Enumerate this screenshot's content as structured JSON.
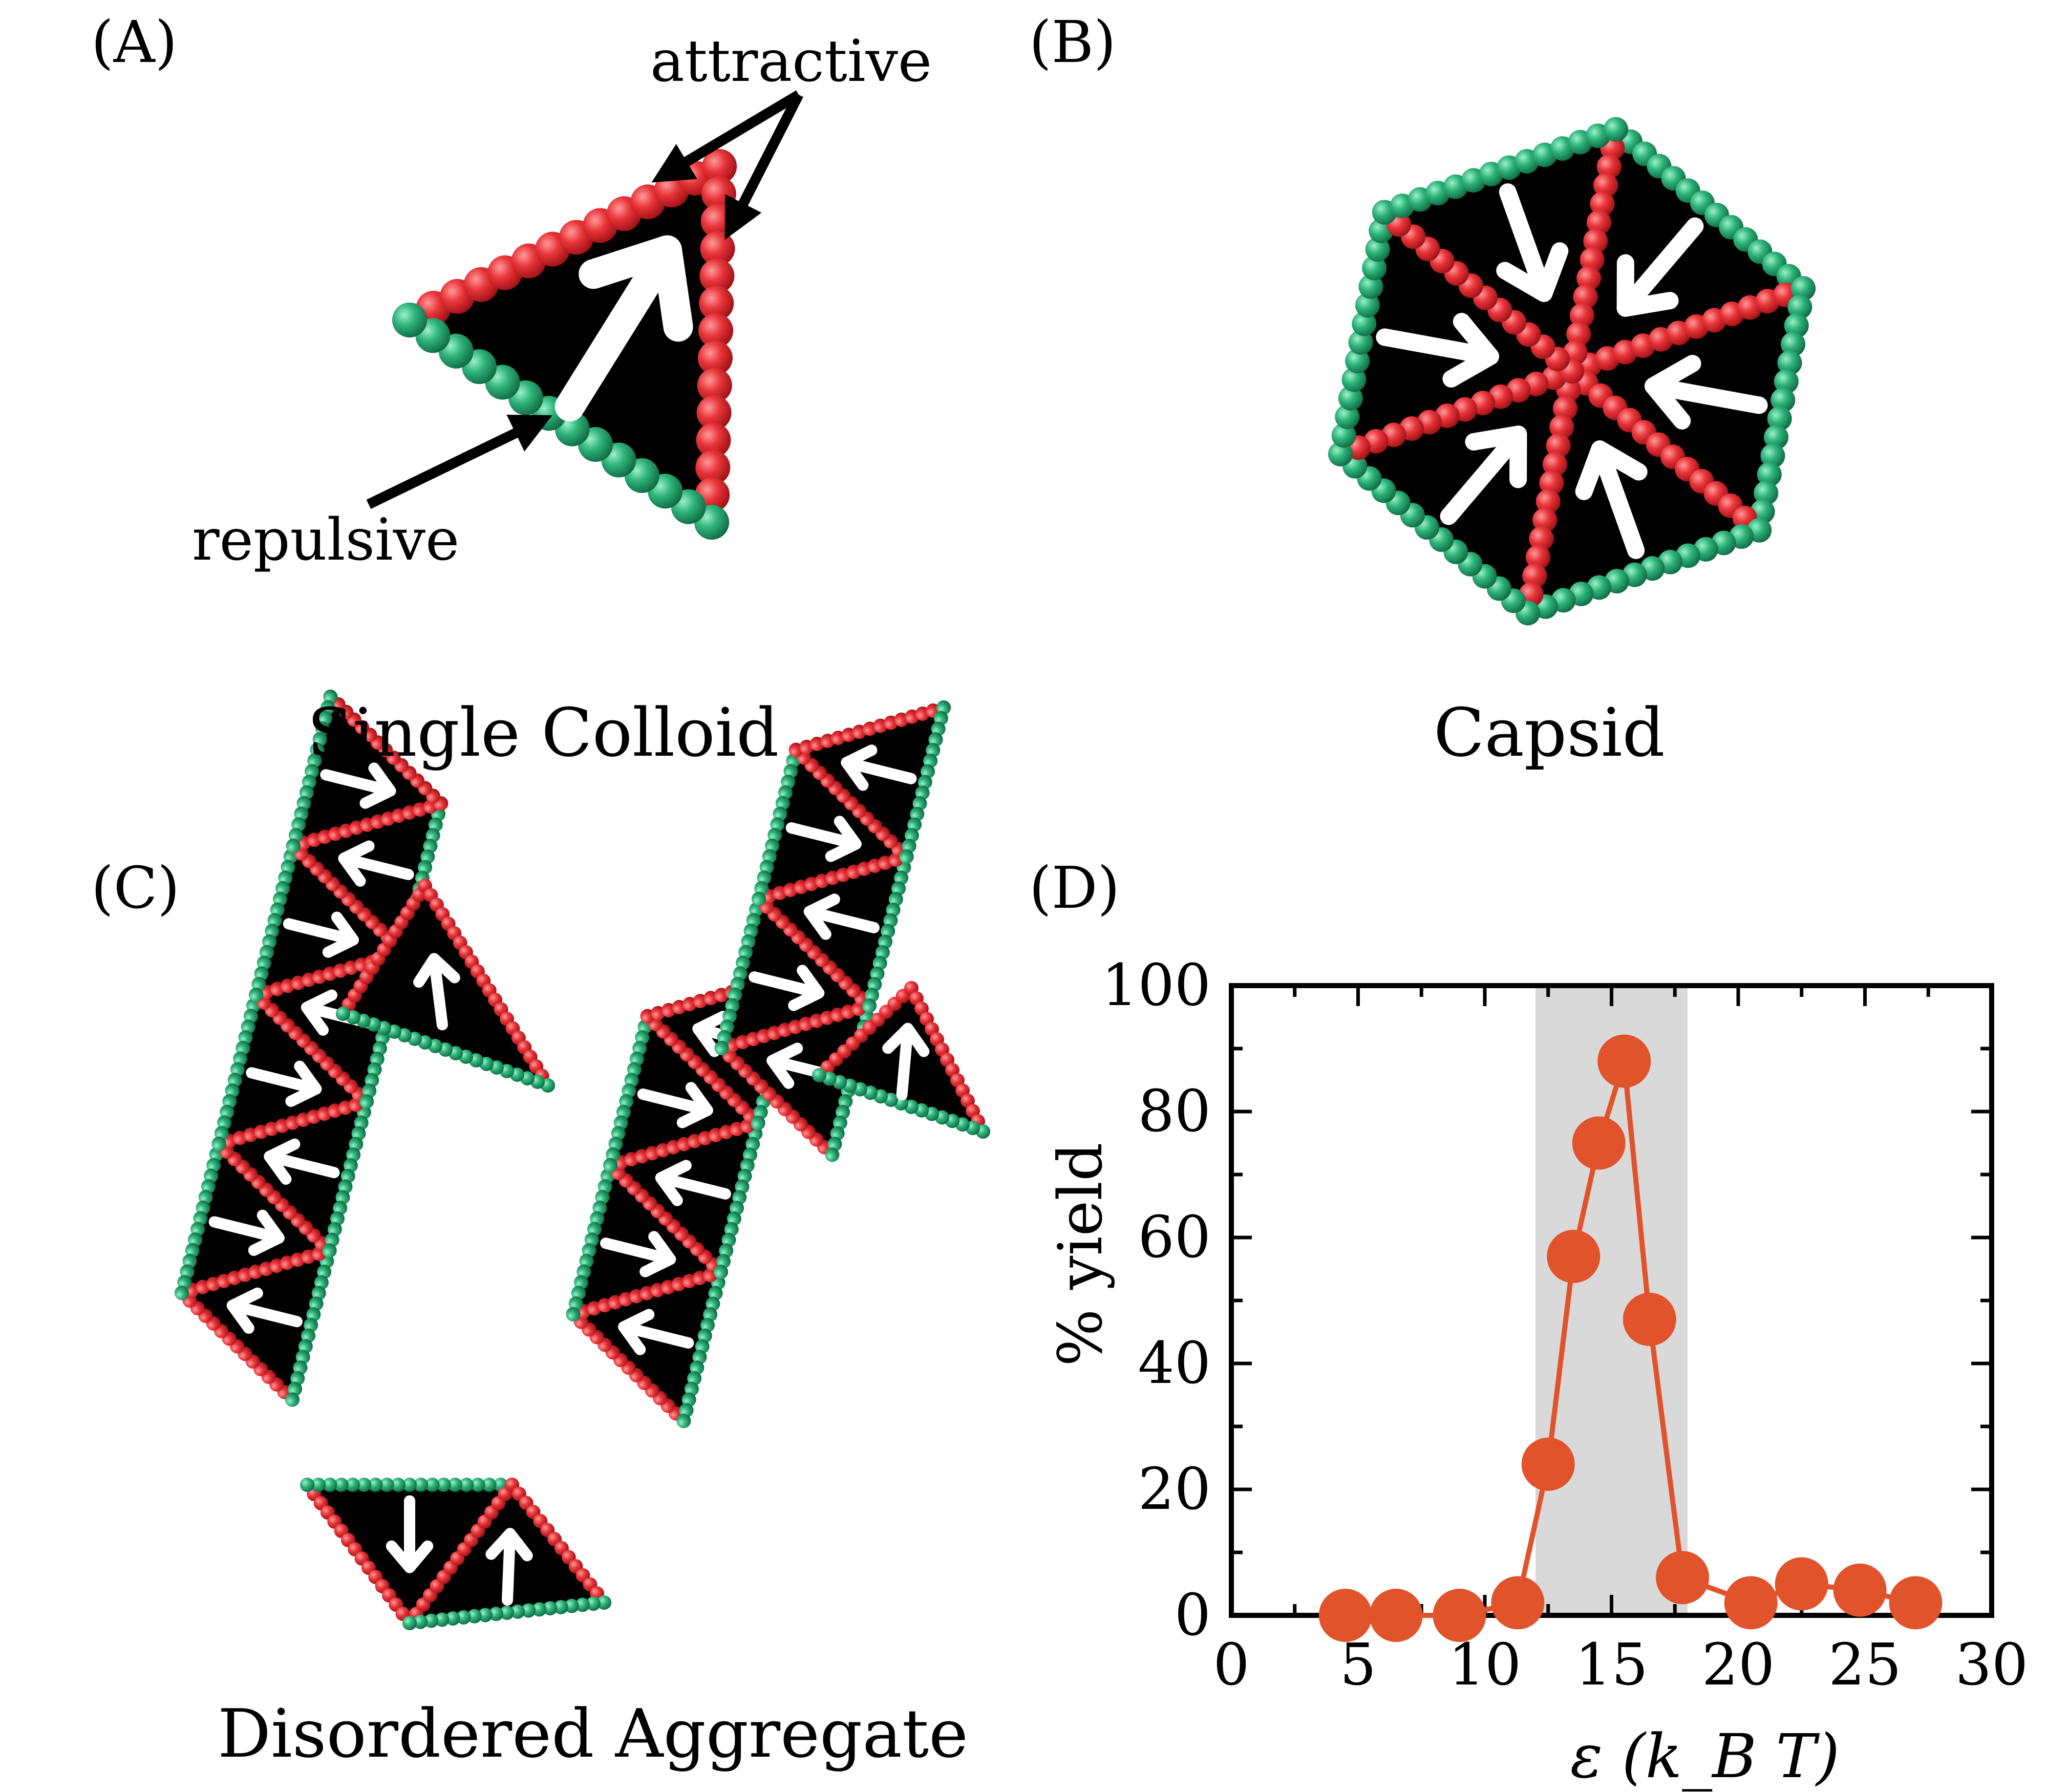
{
  "panels": {
    "a": {
      "letter": "(A)",
      "caption": "Single Colloid",
      "label_attractive": "attractive",
      "label_repulsive": "repulsive"
    },
    "b": {
      "letter": "(B)",
      "caption": "Capsid"
    },
    "c": {
      "letter": "(C)",
      "caption": "Disordered Aggregate"
    },
    "d": {
      "letter": "(D)"
    }
  },
  "colors": {
    "attractive": "#e8353a",
    "repulsive": "#2eb37a",
    "core": "#000000",
    "arrow": "#ffffff",
    "series": "#e0532b",
    "band": "#d9d9d9"
  },
  "chart_data": {
    "type": "scatter",
    "x": [
      4.5,
      6.5,
      9.0,
      11.3,
      12.5,
      13.5,
      14.5,
      15.5,
      16.5,
      17.8,
      20.5,
      22.5,
      24.8,
      27.0
    ],
    "y": [
      0,
      0,
      0,
      2,
      24,
      57,
      75,
      88,
      47,
      6,
      2,
      5,
      4,
      2
    ],
    "xlabel": "ε (k_B T)",
    "ylabel": "% yield",
    "xlim": [
      0,
      30
    ],
    "ylim": [
      0,
      100
    ],
    "xticks": [
      "0",
      "5",
      "10",
      "15",
      "20",
      "25",
      "30"
    ],
    "yticks": [
      "0",
      "20",
      "40",
      "60",
      "80",
      "100"
    ],
    "shaded_band": [
      12,
      18
    ],
    "grid": false
  }
}
